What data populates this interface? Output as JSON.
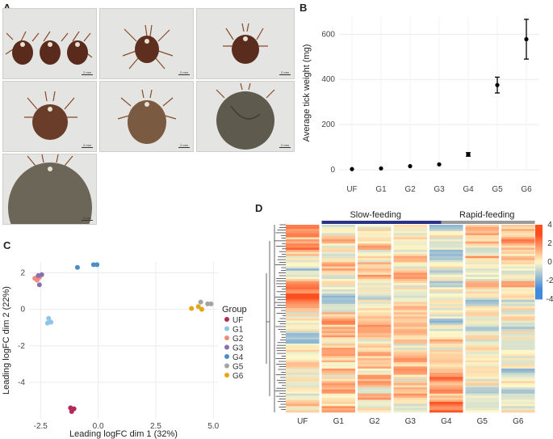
{
  "panels": {
    "a": "A",
    "b": "B",
    "c": "C",
    "d": "D"
  },
  "photos": {
    "scale_label": "2 mm",
    "stages": [
      "UF",
      "G1",
      "G2",
      "G3",
      "G4",
      "G5",
      "G6"
    ]
  },
  "colors": {
    "UF": "#b5285a",
    "G1": "#8ec4e6",
    "G2": "#f08a7a",
    "G3": "#8a6fb0",
    "G4": "#4a8ec7",
    "G5": "#a3a3a3",
    "G6": "#e6a417",
    "slow_bar": "#2b3386",
    "rapid_bar": "#9a9a9a"
  },
  "chart_data": [
    {
      "id": "B",
      "type": "scatter",
      "title": "",
      "xlabel": "",
      "ylabel": "Average tick weight (mg)",
      "categories": [
        "UF",
        "G1",
        "G2",
        "G3",
        "G4",
        "G5",
        "G6"
      ],
      "values": [
        3,
        6,
        16,
        24,
        68,
        375,
        578
      ],
      "errors": [
        1,
        1,
        2,
        2,
        8,
        35,
        88
      ],
      "ylim": [
        0,
        680
      ],
      "yticks": [
        0,
        200,
        400,
        600
      ],
      "grid": true
    },
    {
      "id": "C",
      "type": "scatter",
      "xlabel": "Leading logFC dim 1 (32%)",
      "ylabel": "Leading logFC dim 2 (22%)",
      "xlim": [
        -3,
        5.2
      ],
      "ylim": [
        -6.0,
        2.6
      ],
      "xticks": [
        -2.5,
        0.0,
        2.5,
        5.0
      ],
      "xtick_labels": [
        "-2.5",
        "0.0",
        "2.5",
        "5.0"
      ],
      "yticks": [
        -4,
        -2,
        0,
        2
      ],
      "yticks_labels": [
        "-4",
        "-2",
        "0",
        "2"
      ],
      "legend_title": "Group",
      "legend_position": "right",
      "series": [
        {
          "name": "UF",
          "points": [
            [
              -1.2,
              -5.4
            ],
            [
              -1.15,
              -5.6
            ],
            [
              -1.05,
              -5.45
            ]
          ]
        },
        {
          "name": "G1",
          "points": [
            [
              -2.15,
              -0.5
            ],
            [
              -2.2,
              -0.75
            ],
            [
              -2.05,
              -0.7
            ]
          ]
        },
        {
          "name": "G2",
          "points": [
            [
              -2.75,
              1.7
            ],
            [
              -2.65,
              1.6
            ],
            [
              -2.55,
              1.75
            ]
          ]
        },
        {
          "name": "G3",
          "points": [
            [
              -2.6,
              1.85
            ],
            [
              -2.45,
              1.9
            ],
            [
              -2.55,
              1.35
            ]
          ]
        },
        {
          "name": "G4",
          "points": [
            [
              -0.9,
              2.3
            ],
            [
              -0.2,
              2.45
            ],
            [
              -0.05,
              2.45
            ]
          ]
        },
        {
          "name": "G5",
          "points": [
            [
              4.45,
              0.4
            ],
            [
              4.75,
              0.3
            ],
            [
              4.9,
              0.3
            ]
          ]
        },
        {
          "name": "G6",
          "points": [
            [
              4.05,
              0.05
            ],
            [
              4.35,
              0.15
            ],
            [
              4.5,
              0.0
            ]
          ]
        }
      ]
    },
    {
      "id": "D",
      "type": "heatmap",
      "columns": [
        "UF",
        "G1",
        "G2",
        "G3",
        "G4",
        "G5",
        "G6"
      ],
      "group_labels": {
        "slow": "Slow-feeding",
        "rapid": "Rapid-feeding"
      },
      "colorbar": {
        "ticks": [
          4,
          2,
          0,
          -2,
          -4
        ],
        "labels": [
          "4",
          "2",
          "0",
          "-2",
          "-4"
        ],
        "min": -4,
        "max": 4
      }
    }
  ]
}
